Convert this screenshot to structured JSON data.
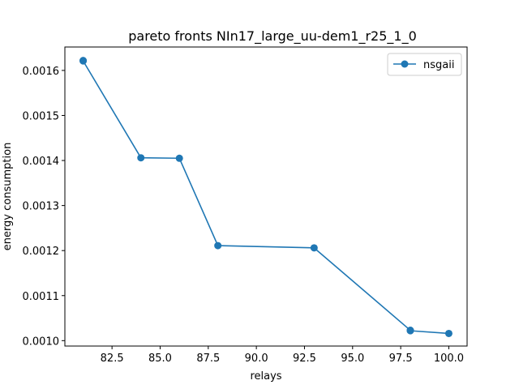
{
  "chart_data": {
    "type": "line",
    "title": "pareto fronts NIn17_large_uu-dem1_r25_1_0",
    "xlabel": "relays",
    "ylabel": "energy consumption",
    "xlim": [
      80.05,
      100.95
    ],
    "ylim": [
      0.000988,
      0.001652
    ],
    "x_ticks": [
      82.5,
      85.0,
      87.5,
      90.0,
      92.5,
      95.0,
      97.5,
      100.0
    ],
    "x_tick_labels": [
      "82.5",
      "85.0",
      "87.5",
      "90.0",
      "92.5",
      "95.0",
      "97.5",
      "100.0"
    ],
    "y_ticks": [
      0.001,
      0.0011,
      0.0012,
      0.0013,
      0.0014,
      0.0015,
      0.0016
    ],
    "y_tick_labels": [
      "0.0010",
      "0.0011",
      "0.0012",
      "0.0013",
      "0.0014",
      "0.0015",
      "0.0016"
    ],
    "grid": false,
    "legend": "top-right",
    "series": [
      {
        "name": "nsgaii",
        "color": "#1f77b4",
        "marker": "circle",
        "x": [
          81,
          81,
          84,
          86,
          88,
          93,
          98,
          98,
          100
        ],
        "y": [
          0.001622,
          0.001621,
          0.001406,
          0.001405,
          0.001211,
          0.001206,
          0.001023,
          0.001022,
          0.001016
        ]
      }
    ]
  }
}
